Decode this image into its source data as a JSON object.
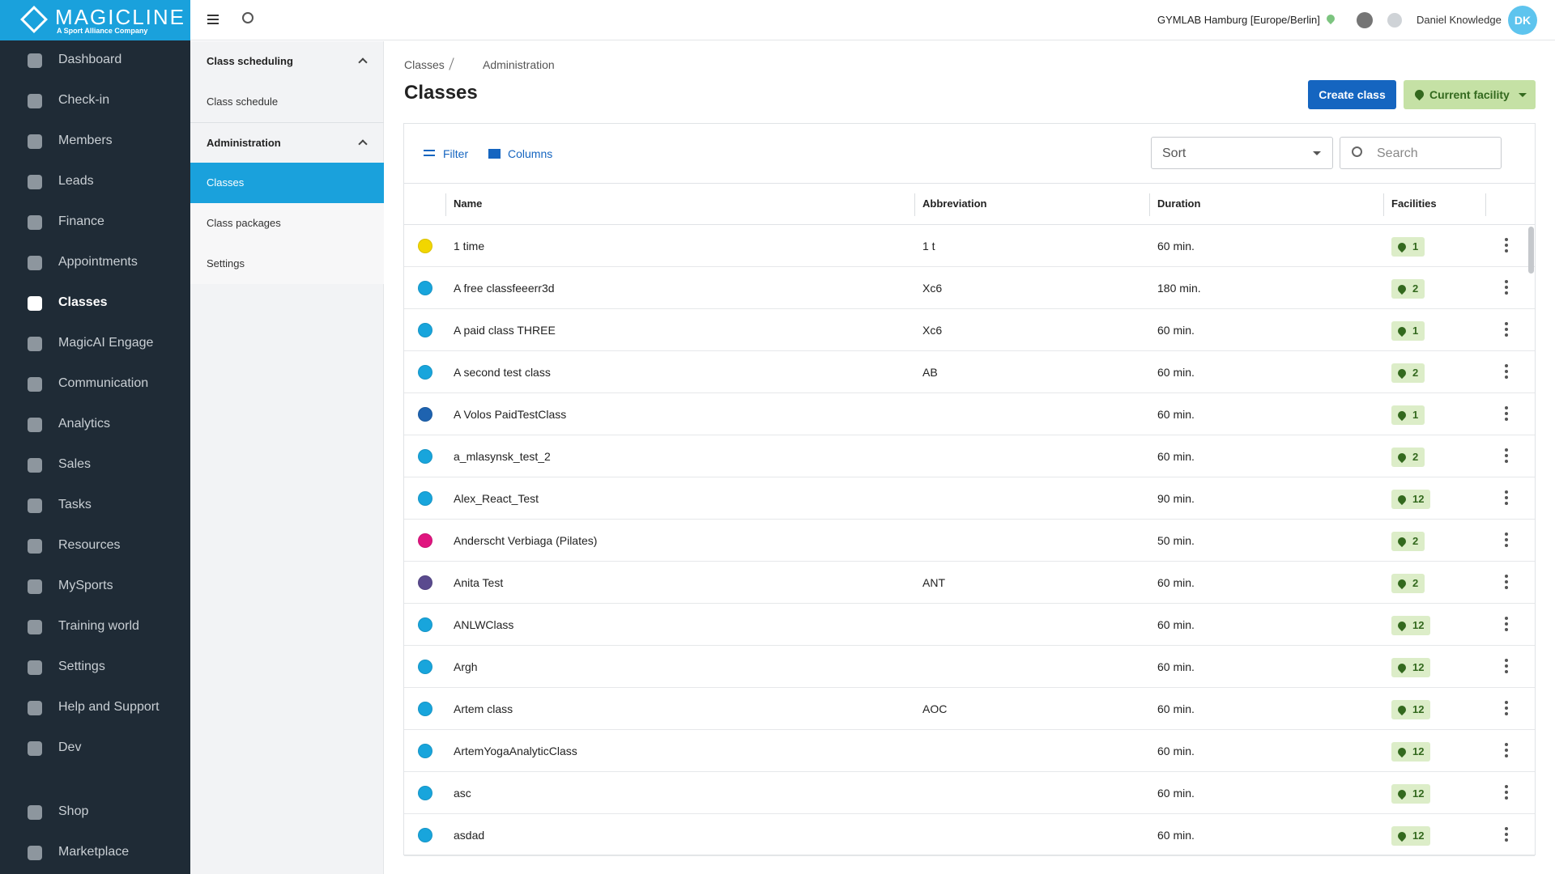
{
  "header": {
    "logo": "MAGICLINE",
    "logo_tagline": "A Sport Alliance Company",
    "location": "GYMLAB Hamburg [Europe/Berlin]",
    "user": "Daniel Knowledge",
    "avatar": "DK"
  },
  "nav": {
    "items": [
      "Dashboard",
      "Check-in",
      "Members",
      "Leads",
      "Finance",
      "Appointments",
      "Classes",
      "MagicAI Engage",
      "Communication",
      "Analytics",
      "Sales",
      "Tasks",
      "Resources",
      "MySports",
      "Training world",
      "Settings",
      "Help and Support",
      "Dev"
    ],
    "active": 6,
    "bottom": [
      "Shop",
      "Marketplace"
    ]
  },
  "subnav": {
    "sections": [
      {
        "title": "Class scheduling",
        "items": [
          "Class schedule"
        ]
      },
      {
        "title": "Administration",
        "items": [
          "Classes",
          "Class packages",
          "Settings"
        ]
      }
    ],
    "active_section": 1,
    "active_item": 0
  },
  "breadcrumb": [
    "Classes",
    "Administration"
  ],
  "title": "Classes",
  "buttons": {
    "create": "Create class",
    "facility": "Current facility"
  },
  "toolbar": {
    "filter": "Filter",
    "columns": "Columns",
    "sort": "Sort",
    "search": "Search"
  },
  "table": {
    "columns": [
      "Name",
      "Abbreviation",
      "Duration",
      "Facilities"
    ],
    "rows": [
      {
        "color": "#f2d600",
        "name": "1 time",
        "abbreviation": "1 t",
        "duration": "60 min.",
        "facilities": 1
      },
      {
        "color": "#18a5dc",
        "name": "A free classfeeerr3d",
        "abbreviation": "Xc6",
        "duration": "180 min.",
        "facilities": 2
      },
      {
        "color": "#18a5dc",
        "name": "A paid class THREE",
        "abbreviation": "Xc6",
        "duration": "60 min.",
        "facilities": 1
      },
      {
        "color": "#18a5dc",
        "name": "A second test class",
        "abbreviation": "AB",
        "duration": "60 min.",
        "facilities": 2
      },
      {
        "color": "#1e63b0",
        "name": "A Volos PaidTestClass",
        "abbreviation": null,
        "duration": "60 min.",
        "facilities": 1
      },
      {
        "color": "#18a5dc",
        "name": "a_mlasynsk_test_2",
        "abbreviation": null,
        "duration": "60 min.",
        "facilities": 2
      },
      {
        "color": "#18a5dc",
        "name": "Alex_React_Test",
        "abbreviation": null,
        "duration": "90 min.",
        "facilities": 12
      },
      {
        "color": "#e0157f",
        "name": "Anderscht Verbiaga (Pilates)",
        "abbreviation": null,
        "duration": "50 min.",
        "facilities": 2
      },
      {
        "color": "#5a4a8e",
        "name": "Anita Test",
        "abbreviation": "ANT",
        "duration": "60 min.",
        "facilities": 2
      },
      {
        "color": "#18a5dc",
        "name": "ANLWClass",
        "abbreviation": null,
        "duration": "60 min.",
        "facilities": 12
      },
      {
        "color": "#18a5dc",
        "name": "Argh",
        "abbreviation": null,
        "duration": "60 min.",
        "facilities": 12
      },
      {
        "color": "#18a5dc",
        "name": "Artem class",
        "abbreviation": "AOC",
        "duration": "60 min.",
        "facilities": 12
      },
      {
        "color": "#18a5dc",
        "name": "ArtemYogaAnalyticClass",
        "abbreviation": null,
        "duration": "60 min.",
        "facilities": 12
      },
      {
        "color": "#18a5dc",
        "name": "asc",
        "abbreviation": null,
        "duration": "60 min.",
        "facilities": 12
      },
      {
        "color": "#18a5dc",
        "name": "asdad",
        "abbreviation": null,
        "duration": "60 min.",
        "facilities": 12
      }
    ]
  }
}
